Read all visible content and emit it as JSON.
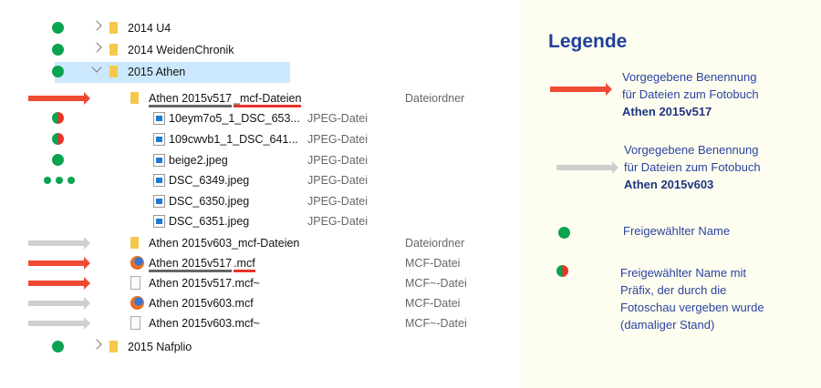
{
  "tree": [
    {
      "level": 0,
      "chevron": "right",
      "icon": "folder",
      "name": "2014 U4",
      "type": "",
      "marker": "dot"
    },
    {
      "level": 0,
      "chevron": "right",
      "icon": "folder",
      "name": "2014 WeidenChronik",
      "type": "",
      "marker": "dot"
    },
    {
      "level": 0,
      "chevron": "down",
      "icon": "folder",
      "name": "2015 Athen",
      "type": "",
      "marker": "dot",
      "selected": true
    },
    {
      "level": 1,
      "icon": "folder",
      "name": "Athen 2015v517_mcf-Dateien",
      "name_parts": [
        "Athen 2015v517",
        "_mcf-Dateien"
      ],
      "type": "Dateiordner",
      "marker": "arrow-red"
    },
    {
      "level": 2,
      "icon": "image",
      "name": "10eym7o5_1_DSC_653...",
      "type": "JPEG-Datei",
      "marker": "half"
    },
    {
      "level": 2,
      "icon": "image",
      "name": "109cwvb1_1_DSC_641...",
      "type": "JPEG-Datei",
      "marker": "half"
    },
    {
      "level": 2,
      "icon": "image",
      "name": "beige2.jpeg",
      "type": "JPEG-Datei",
      "marker": "dot"
    },
    {
      "level": 2,
      "icon": "image",
      "name": "DSC_6349.jpeg",
      "type": "JPEG-Datei",
      "marker": "dots"
    },
    {
      "level": 2,
      "icon": "image",
      "name": "DSC_6350.jpeg",
      "type": "JPEG-Datei",
      "marker": ""
    },
    {
      "level": 2,
      "icon": "image",
      "name": "DSC_6351.jpeg",
      "type": "JPEG-Datei",
      "marker": ""
    },
    {
      "level": 1,
      "icon": "folder",
      "name": "Athen 2015v603_mcf-Dateien",
      "type": "Dateiordner",
      "marker": "arrow-gray"
    },
    {
      "level": 1,
      "icon": "firefox",
      "name": "Athen 2015v517.mcf",
      "name_parts": [
        "Athen 2015v517",
        ".mcf"
      ],
      "type": "MCF-Datei",
      "marker": "arrow-red"
    },
    {
      "level": 1,
      "icon": "file",
      "name": "Athen 2015v517.mcf~",
      "type": "MCF~-Datei",
      "marker": "arrow-red"
    },
    {
      "level": 1,
      "icon": "firefox",
      "name": "Athen 2015v603.mcf",
      "type": "MCF-Datei",
      "marker": "arrow-gray"
    },
    {
      "level": 1,
      "icon": "file",
      "name": "Athen 2015v603.mcf~",
      "type": "MCF~-Datei",
      "marker": "arrow-gray"
    },
    {
      "level": 0,
      "chevron": "right",
      "icon": "folder",
      "name": "2015 Nafplio",
      "type": "",
      "marker": "dot"
    }
  ],
  "legend": {
    "title": "Legende",
    "items": [
      {
        "marker": "arrow-red",
        "lines": [
          "Vorgegebene Benennung",
          "für Dateien zum Fotobuch"
        ],
        "bold": "Athen 2015v517"
      },
      {
        "marker": "arrow-gray",
        "lines": [
          "Vorgegebene Benennung",
          "für Dateien zum Fotobuch"
        ],
        "bold": "Athen 2015v603"
      },
      {
        "marker": "dot",
        "lines": [
          "Freigewählter Name"
        ]
      },
      {
        "marker": "half",
        "lines": [
          "Freigewählter Name mit",
          "Präfix, der durch die",
          "Fotoschau vergeben wurde",
          "(damaliger Stand)"
        ]
      }
    ]
  },
  "colors": {
    "red": "#f04a35",
    "gray": "#cfcfcf",
    "green": "#0aa34f",
    "legend_text": "#2a43a0",
    "selection": "#cce8ff",
    "legend_bg": "#fefef0"
  }
}
